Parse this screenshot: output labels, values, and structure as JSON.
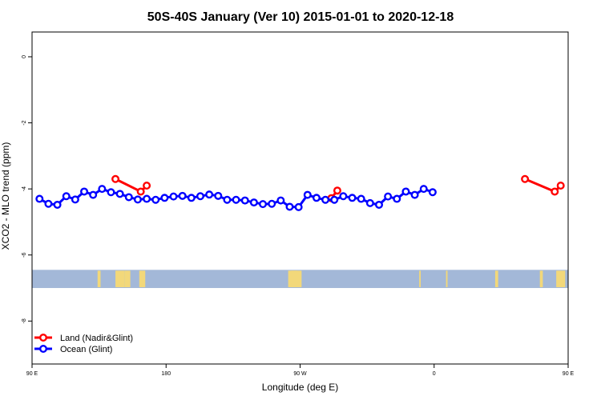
{
  "chart_data": {
    "type": "line",
    "title": "50S-40S January (Ver 10)   2015-01-01 to 2020-12-18",
    "xlabel": "Longitude (deg E)",
    "ylabel": "XCO2 - MLO trend (ppm)",
    "xlim": [
      90,
      450
    ],
    "ylim": [
      -9.3,
      0.75
    ],
    "x_ticks": [
      {
        "value": 90,
        "label": "90 E"
      },
      {
        "value": 180,
        "label": "180"
      },
      {
        "value": 270,
        "label": "90 W"
      },
      {
        "value": 360,
        "label": "0"
      },
      {
        "value": 450,
        "label": "90 E"
      },
      {
        "value": 540,
        "label": "180"
      }
    ],
    "y_ticks": [
      {
        "value": 0,
        "label": "0"
      },
      {
        "value": -2,
        "label": "-2"
      },
      {
        "value": -4,
        "label": "-4"
      },
      {
        "value": -6,
        "label": "-6"
      },
      {
        "value": -8,
        "label": "-8"
      }
    ],
    "legend_position": "bottom-left",
    "grid": false,
    "series": [
      {
        "name": "Land (Nadir&Glint)",
        "color": "#ff0000",
        "points": [
          [
            146,
            -3.7
          ],
          [
            163,
            -4.08
          ],
          [
            167,
            -3.9
          ],
          [
            291,
            -4.28
          ],
          [
            295,
            -4.05
          ],
          [
            421,
            -3.7
          ],
          [
            441,
            -4.08
          ],
          [
            445,
            -3.9
          ]
        ]
      },
      {
        "name": "Ocean (Glint)",
        "color": "#0000ff",
        "points": [
          [
            95,
            -4.3
          ],
          [
            101,
            -4.45
          ],
          [
            107,
            -4.48
          ],
          [
            113,
            -4.22
          ],
          [
            119,
            -4.32
          ],
          [
            125,
            -4.08
          ],
          [
            131,
            -4.18
          ],
          [
            137,
            -4.0
          ],
          [
            143,
            -4.1
          ],
          [
            149,
            -4.15
          ],
          [
            155,
            -4.25
          ],
          [
            161,
            -4.32
          ],
          [
            167,
            -4.3
          ],
          [
            173,
            -4.33
          ],
          [
            179,
            -4.27
          ],
          [
            185,
            -4.23
          ],
          [
            191,
            -4.21
          ],
          [
            197,
            -4.27
          ],
          [
            203,
            -4.22
          ],
          [
            209,
            -4.17
          ],
          [
            215,
            -4.21
          ],
          [
            221,
            -4.33
          ],
          [
            227,
            -4.33
          ],
          [
            233,
            -4.35
          ],
          [
            239,
            -4.41
          ],
          [
            245,
            -4.46
          ],
          [
            251,
            -4.45
          ],
          [
            257,
            -4.35
          ],
          [
            263,
            -4.54
          ],
          [
            269,
            -4.55
          ],
          [
            275,
            -4.18
          ],
          [
            281,
            -4.27
          ],
          [
            287,
            -4.33
          ],
          [
            293,
            -4.33
          ],
          [
            299,
            -4.22
          ],
          [
            305,
            -4.27
          ],
          [
            311,
            -4.3
          ],
          [
            317,
            -4.43
          ],
          [
            323,
            -4.48
          ],
          [
            329,
            -4.23
          ],
          [
            335,
            -4.3
          ],
          [
            341,
            -4.08
          ],
          [
            347,
            -4.18
          ],
          [
            353,
            -4.0
          ],
          [
            359,
            -4.1
          ]
        ]
      }
    ],
    "map_strip": {
      "y_range": [
        -7.0,
        -6.45
      ],
      "ocean_color": "#a3b8d8",
      "land_color": "#f2d87a",
      "land_segments": [
        [
          134,
          136
        ],
        [
          146,
          152
        ],
        [
          152,
          156
        ],
        [
          162,
          166
        ],
        [
          262,
          268
        ],
        [
          264,
          271
        ],
        [
          350,
          351
        ],
        [
          368,
          369
        ],
        [
          401,
          403
        ],
        [
          431,
          433
        ],
        [
          442,
          448
        ]
      ]
    }
  }
}
